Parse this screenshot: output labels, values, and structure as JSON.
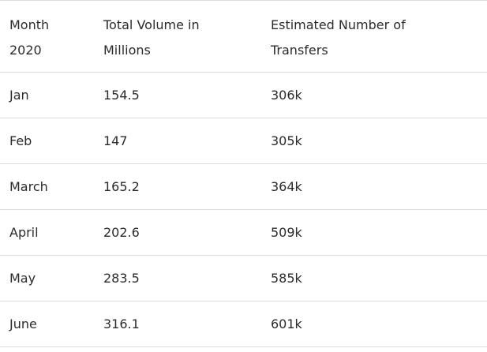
{
  "table": {
    "header": [
      "Month 2020",
      "Total Volume in Millions",
      "Estimated Number of Transfers"
    ],
    "rows": [
      [
        "Jan",
        154.5,
        "306k"
      ],
      [
        "Feb",
        147,
        "305k"
      ],
      [
        "March",
        165.2,
        "364k"
      ],
      [
        "April",
        202.6,
        "509k"
      ],
      [
        "May",
        283.5,
        "585k"
      ],
      [
        "June",
        316.1,
        "601k"
      ]
    ]
  }
}
